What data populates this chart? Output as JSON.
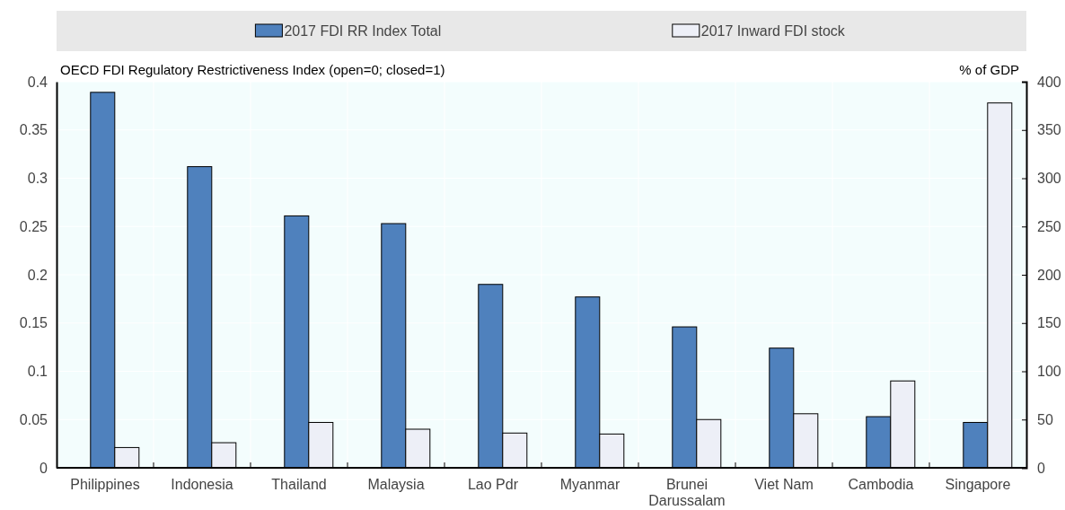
{
  "chart_data": {
    "type": "bar",
    "ylabel": "OECD FDI Regulatory Restrictiveness Index (open=0; closed=1)",
    "y2label": "% of GDP",
    "categories": [
      "Philippines",
      "Indonesia",
      "Thailand",
      "Malaysia",
      "Lao Pdr",
      "Myanmar",
      "Brunei Darussalam",
      "Viet Nam",
      "Cambodia",
      "Singapore"
    ],
    "series": [
      {
        "name": "2017 FDI RR Index Total",
        "color": "#4f81bd",
        "values": [
          0.389,
          0.312,
          0.261,
          0.253,
          0.19,
          0.177,
          0.146,
          0.124,
          0.053,
          0.047
        ]
      },
      {
        "name": "2017 Inward FDI stock",
        "color": "#edeff7",
        "axis": "y2",
        "values": [
          21,
          26,
          47,
          40,
          36,
          35,
          50,
          56,
          90,
          378
        ]
      }
    ],
    "ylim": [
      0,
      0.4
    ],
    "yticks": [
      0,
      0.05,
      0.1,
      0.15,
      0.2,
      0.25,
      0.3,
      0.35,
      0.4
    ],
    "y2lim": [
      0,
      400
    ],
    "y2ticks": [
      0,
      50,
      100,
      150,
      200,
      250,
      300,
      350,
      400
    ],
    "grid": true,
    "legend": "top"
  }
}
